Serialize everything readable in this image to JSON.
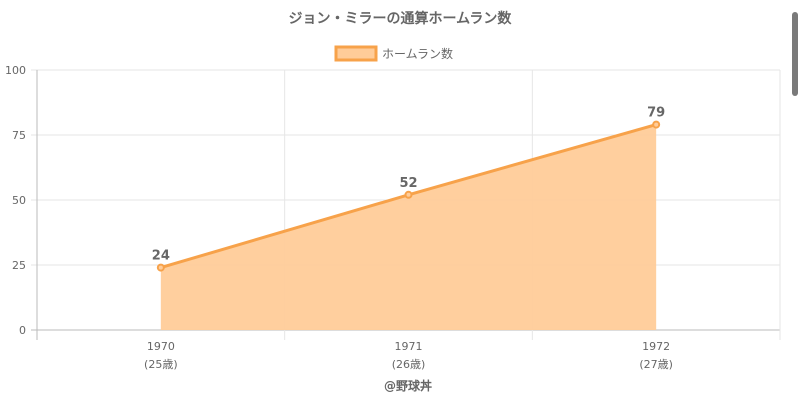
{
  "chart_data": {
    "type": "area",
    "title": "ジョン・ミラーの通算ホームラン数",
    "categories": [
      "1970",
      "1971",
      "1972"
    ],
    "sublabels": [
      "(25歳)",
      "(26歳)",
      "(27歳)"
    ],
    "series": [
      {
        "name": "ホームラン数",
        "values": [
          24,
          52,
          79
        ]
      }
    ],
    "ylim": [
      0,
      100
    ],
    "yticks": [
      0,
      25,
      50,
      75,
      100
    ],
    "grid": true,
    "legend": "top",
    "colors": {
      "line": "#f7a24a",
      "fill": "#ffcc99"
    }
  },
  "footer": {
    "credit": "@野球丼"
  }
}
